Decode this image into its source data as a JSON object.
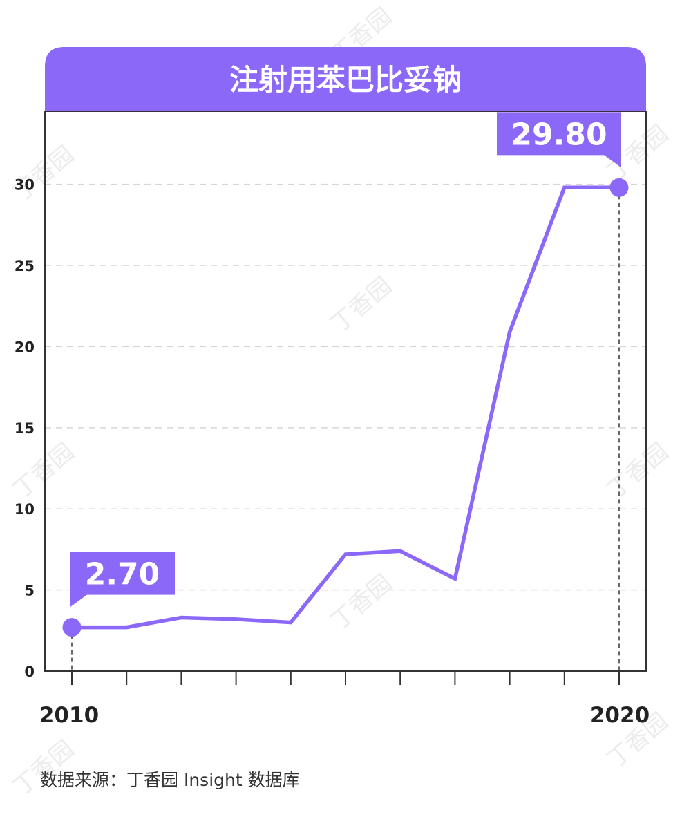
{
  "colors": {
    "accent": "#8b68f7",
    "grid": "#d6d6d6",
    "frame": "#333333",
    "text": "#222222",
    "watermark": "#ececec"
  },
  "watermark": {
    "text": "丁香园"
  },
  "source": "数据来源：丁香园 Insight 数据库",
  "chart_data": {
    "type": "line",
    "title": "注射用苯巴比妥钠",
    "xlabel": "",
    "ylabel": "",
    "x": [
      2010,
      2011,
      2012,
      2013,
      2014,
      2015,
      2016,
      2017,
      2018,
      2019,
      2020
    ],
    "x_tick_labels": [
      "2010",
      "2020"
    ],
    "y_ticks": [
      "0",
      "5",
      "10",
      "15",
      "20",
      "25",
      "30"
    ],
    "ylim": [
      0,
      34.5
    ],
    "grid": true,
    "grid_style": "dashed",
    "legend": "none",
    "series": [
      {
        "values": [
          2.7,
          2.7,
          3.3,
          3.2,
          3.0,
          7.2,
          7.4,
          5.7,
          20.9,
          29.8,
          29.8
        ]
      }
    ],
    "annotations": [
      {
        "index": 0,
        "text": "2.70"
      },
      {
        "index": 10,
        "text": "29.80"
      }
    ]
  }
}
